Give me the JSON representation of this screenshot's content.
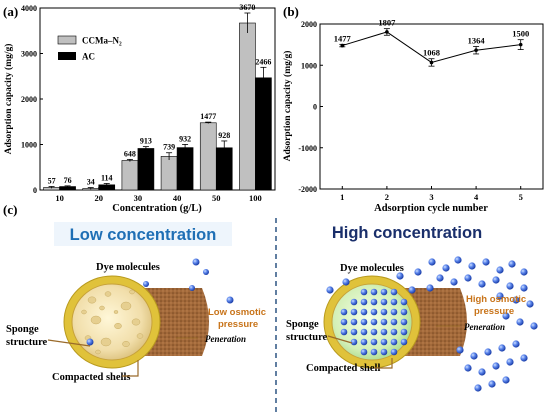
{
  "panel_labels": {
    "a": "(a)",
    "b": "(b)",
    "c": "(c)"
  },
  "chart_data": [
    {
      "type": "bar",
      "panel": "(a)",
      "categories": [
        "10",
        "20",
        "30",
        "40",
        "50",
        "100"
      ],
      "series": [
        {
          "name": "CCMa–N₂",
          "values": [
            57,
            34,
            648,
            739,
            1477,
            3670
          ],
          "error": [
            20,
            20,
            25,
            80,
            15,
            220
          ],
          "color": "#c0c0c0"
        },
        {
          "name": "AC",
          "values": [
            76,
            114,
            913,
            932,
            928,
            2466
          ],
          "error": [
            15,
            30,
            40,
            70,
            150,
            230
          ],
          "color": "#000000"
        }
      ],
      "data_labels": {
        "CCMa–N₂": [
          "57",
          "34",
          "648",
          "739",
          "1477",
          "3670"
        ],
        "AC": [
          "76",
          "114",
          "913",
          "932",
          "928",
          "2466"
        ]
      },
      "xlabel": "Concentration (g/L)",
      "ylabel": "Adsorption capacity (mg/g)",
      "ylim": [
        0,
        4000
      ],
      "yticks": [
        0,
        1000,
        2000,
        3000,
        4000
      ],
      "legend": "top-left"
    },
    {
      "type": "line",
      "panel": "(b)",
      "x": [
        1,
        2,
        3,
        4,
        5
      ],
      "values": [
        1477,
        1807,
        1068,
        1364,
        1500
      ],
      "error": [
        30,
        80,
        90,
        90,
        120
      ],
      "data_labels": [
        "1477",
        "1807",
        "1068",
        "1364",
        "1500"
      ],
      "xlabel": "Adsorption cycle number",
      "ylabel": "Adsorption capacity (mg/g)",
      "ylim": [
        -2000,
        2000
      ],
      "yticks": [
        -2000,
        -1000,
        0,
        1000,
        2000
      ],
      "xticks": [
        1,
        2,
        3,
        4,
        5
      ]
    }
  ],
  "diagram": {
    "low": {
      "title": "Low concentration",
      "dye_label": "Dye molecules",
      "pressure_label": "Low osmotic pressure",
      "peneration_label": "Peneration",
      "sponge_label": "Sponge structure",
      "shell_label": "Compacted shells"
    },
    "high": {
      "title": "High concentration",
      "dye_label": "Dye molecules",
      "pressure_label": "High osmotic pressure",
      "peneration_label": "Peneration",
      "sponge_label": "Sponge structure",
      "shell_label": "Compacted shell"
    },
    "colors": {
      "title_low": "#1f6fb5",
      "title_high": "#1a2f6b",
      "pressure_text": "#c8741a",
      "dye": "#3b63d8",
      "divider": "#3a5f8a"
    }
  }
}
